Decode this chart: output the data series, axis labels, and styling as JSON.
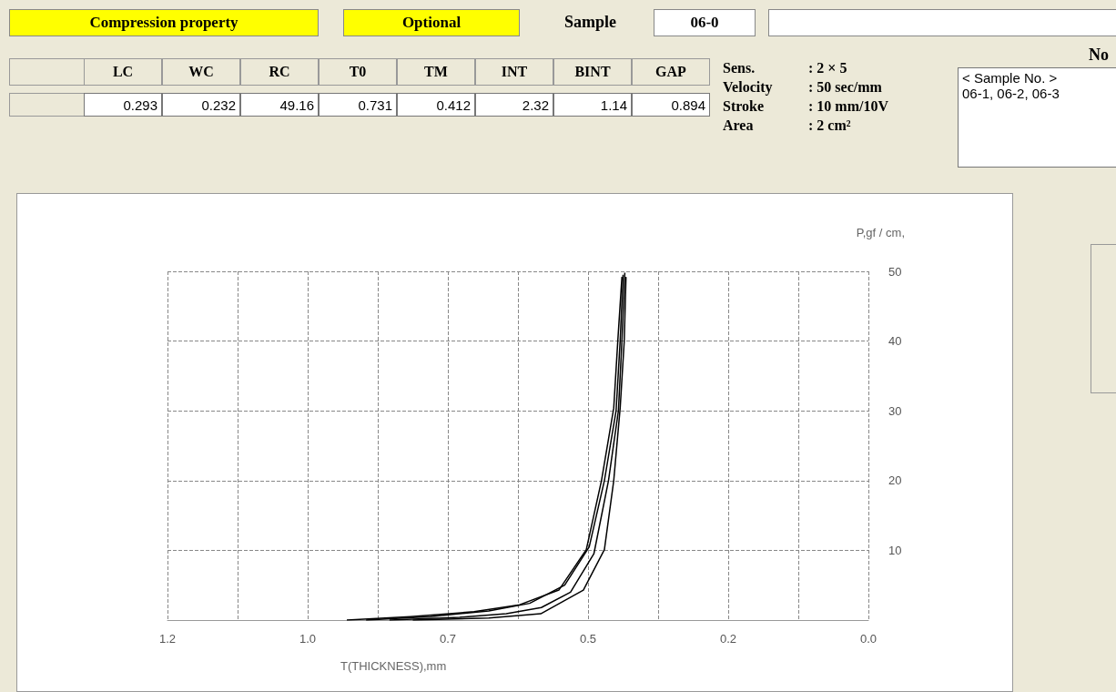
{
  "chart_data": {
    "type": "line",
    "xlabel": "T(THICKNESS),mm",
    "ylabel": "P,gf / cm,",
    "xlim": [
      1.2,
      0
    ],
    "xticks": [
      {
        "value": 1.2,
        "label": "1.2"
      },
      {
        "value": 1.08,
        "label": null
      },
      {
        "value": 0.96,
        "label": "1.0"
      },
      {
        "value": 0.84,
        "label": null
      },
      {
        "value": 0.72,
        "label": "0.7"
      },
      {
        "value": 0.6,
        "label": null
      },
      {
        "value": 0.48,
        "label": "0.5"
      },
      {
        "value": 0.36,
        "label": null
      },
      {
        "value": 0.24,
        "label": "0.2"
      },
      {
        "value": 0.12,
        "label": null
      },
      {
        "value": 0,
        "label": "0.0"
      }
    ],
    "ylim": [
      0,
      50
    ],
    "yticks": [
      {
        "value": 0,
        "label": null
      },
      10,
      20,
      30,
      40,
      50
    ],
    "grid": true,
    "marker": "none",
    "line_style": "solid",
    "series": [
      {
        "color": "#000000",
        "x": [
          0.893,
          0.784,
          0.675,
          0.597,
          0.53,
          0.483,
          0.457,
          0.436,
          0.429,
          0.422
        ],
        "values": [
          0,
          0.5,
          1.2,
          2.2,
          4.3,
          10.1,
          20,
          30.4,
          40.1,
          49.2
        ]
      },
      {
        "color": "#000000",
        "x": [
          0.86,
          0.75,
          0.65,
          0.58,
          0.52,
          0.478,
          0.452,
          0.432,
          0.425,
          0.42
        ],
        "values": [
          0,
          0.5,
          1.3,
          2.4,
          5,
          10.5,
          20,
          30,
          40,
          49.5
        ]
      },
      {
        "color": "#000000",
        "x": [
          0.82,
          0.7,
          0.62,
          0.56,
          0.51,
          0.47,
          0.445,
          0.428,
          0.422,
          0.417
        ],
        "values": [
          0,
          0.4,
          0.9,
          1.8,
          4,
          9.5,
          20,
          30,
          40,
          49.8
        ]
      },
      {
        "color": "#000000",
        "x": [
          0.78,
          0.65,
          0.561,
          0.488,
          0.452,
          0.436,
          0.425,
          0.418,
          0.415
        ],
        "values": [
          0,
          0.3,
          0.9,
          4.3,
          10.1,
          20,
          30.4,
          40,
          49.2
        ]
      }
    ],
    "annotations": [
      "Compression property",
      "Optional",
      "Sample",
      "06-0",
      "LC",
      "WC",
      "RC",
      "T0",
      "TM",
      "INT",
      "BINT",
      "GAP",
      "0.293",
      "0.232",
      "49.16",
      "0.731",
      "0.412",
      "2.32",
      "1.14",
      "0.894",
      "Sens.",
      ": 2 × 5",
      "Velocity",
      ":  50 sec/mm",
      "Stroke",
      ": 10 mm/10V",
      "Area",
      ": 2 cm²",
      "No",
      "< Sample No. >",
      "06-1, 06-2, 06-3"
    ]
  }
}
